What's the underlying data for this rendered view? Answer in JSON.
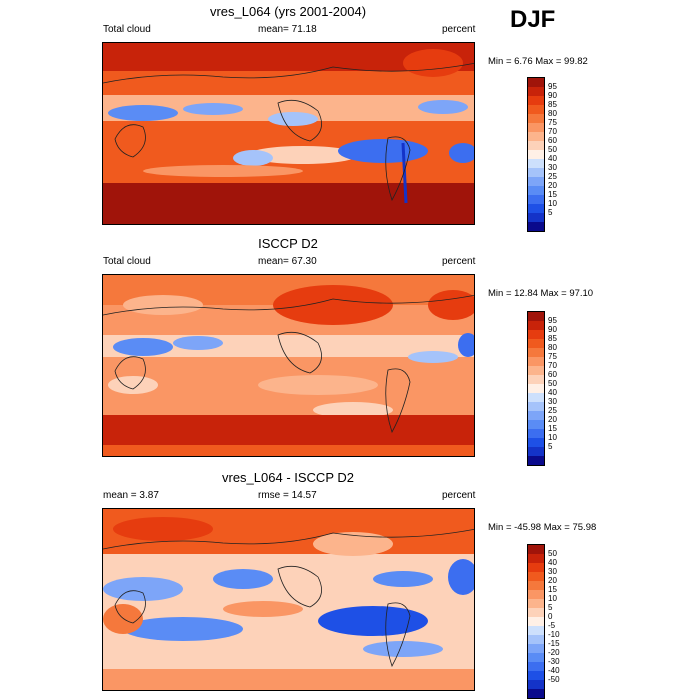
{
  "season": "DJF",
  "colors": {
    "prec_scale": [
      "#0a0a8c",
      "#1433c8",
      "#1e50e6",
      "#3c6ef0",
      "#5a8cf5",
      "#7da5f8",
      "#a5c3fa",
      "#cde0fc",
      "#fff0e6",
      "#fdd2b9",
      "#fcb48c",
      "#fa9664",
      "#f5783c",
      "#f05a1e",
      "#e63c0f",
      "#c8230a",
      "#a0140a"
    ],
    "diff_scale": [
      "#0a0a8c",
      "#1433c8",
      "#1e50e6",
      "#3c6ef0",
      "#5a8cf5",
      "#7da5f8",
      "#a5c3fa",
      "#cde0fc",
      "#fff0e6",
      "#fdd2b9",
      "#fcb48c",
      "#fa9664",
      "#f5783c",
      "#f05a1e",
      "#e63c0f",
      "#c8230a",
      "#a0140a"
    ]
  },
  "panels": [
    {
      "title": "vres_L064 (yrs 2001-2004)",
      "left_label": "Total cloud",
      "center_label": "mean=  71.18",
      "right_label": "percent",
      "minmax": "Min =   6.76 Max =  99.82",
      "levels": [
        "95",
        "90",
        "85",
        "80",
        "75",
        "70",
        "60",
        "50",
        "40",
        "30",
        "25",
        "20",
        "15",
        "10",
        "5"
      ],
      "icon": "global-map-icon"
    },
    {
      "title": "ISCCP D2",
      "left_label": "Total cloud",
      "center_label": "mean=  67.30",
      "right_label": "percent",
      "minmax": "Min =  12.84 Max =  97.10",
      "levels": [
        "95",
        "90",
        "85",
        "80",
        "75",
        "70",
        "60",
        "50",
        "40",
        "30",
        "25",
        "20",
        "15",
        "10",
        "5"
      ],
      "icon": "global-map-icon"
    },
    {
      "title": "vres_L064 - ISCCP D2",
      "left_label": "mean =   3.87",
      "center_label": "rmse =  14.57",
      "right_label": "percent",
      "minmax": "Min = -45.98 Max =  75.98",
      "levels": [
        "50",
        "40",
        "30",
        "20",
        "15",
        "10",
        "5",
        "0",
        "-5",
        "-10",
        "-15",
        "-20",
        "-30",
        "-40",
        "-50"
      ],
      "icon": "global-map-icon"
    }
  ]
}
